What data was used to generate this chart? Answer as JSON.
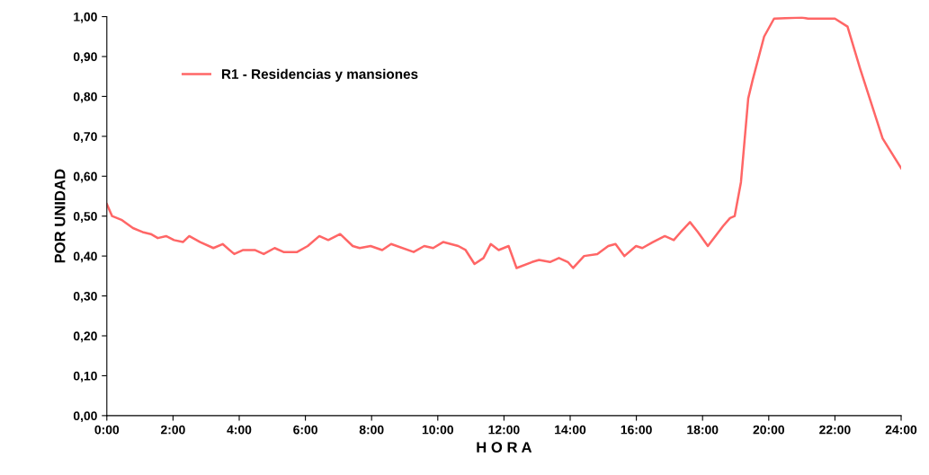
{
  "chart_data": {
    "type": "line",
    "xlabel": "H O R A",
    "ylabel": "POR UNIDAD",
    "xlim": [
      0,
      24
    ],
    "ylim": [
      0,
      1
    ],
    "grid": false,
    "legend": "top left",
    "marker": "none",
    "line_style": "solid",
    "xticks": [
      {
        "value": 0,
        "label": "0:00"
      },
      {
        "value": 2,
        "label": "2:00"
      },
      {
        "value": 4,
        "label": "4:00"
      },
      {
        "value": 6,
        "label": "6:00"
      },
      {
        "value": 8,
        "label": "8:00"
      },
      {
        "value": 10,
        "label": "10:00"
      },
      {
        "value": 12,
        "label": "12:00"
      },
      {
        "value": 14,
        "label": "14:00"
      },
      {
        "value": 16,
        "label": "16:00"
      },
      {
        "value": 18,
        "label": "18:00"
      },
      {
        "value": 20,
        "label": "20:00"
      },
      {
        "value": 22,
        "label": "22:00"
      },
      {
        "value": 24,
        "label": "24:00"
      }
    ],
    "yticks": [
      {
        "value": 0,
        "label": "0,00"
      },
      {
        "value": 0.1,
        "label": "0,10"
      },
      {
        "value": 0.2,
        "label": "0,20"
      },
      {
        "value": 0.3,
        "label": "0,30"
      },
      {
        "value": 0.4,
        "label": "0,40"
      },
      {
        "value": 0.5,
        "label": "0,50"
      },
      {
        "value": 0.6,
        "label": "0,60"
      },
      {
        "value": 0.7,
        "label": "0,70"
      },
      {
        "value": 0.8,
        "label": "0,80"
      },
      {
        "value": 0.9,
        "label": "0,90"
      },
      {
        "value": 1,
        "label": "1,00"
      }
    ],
    "series": [
      {
        "name": "R1 - Residencias y mansiones",
        "color": "#ff6666",
        "x": [
          0,
          0.16,
          0.46,
          0.79,
          1.08,
          1.33,
          1.54,
          1.79,
          2.03,
          2.3,
          2.49,
          2.82,
          3.22,
          3.5,
          3.85,
          4.12,
          4.47,
          4.74,
          5.07,
          5.34,
          5.75,
          6.07,
          6.42,
          6.69,
          7.05,
          7.43,
          7.64,
          7.97,
          8.32,
          8.59,
          9.27,
          9.59,
          9.86,
          10.16,
          10.62,
          10.84,
          11.11,
          11.38,
          11.6,
          11.84,
          12.14,
          12.38,
          12.85,
          13.06,
          13.39,
          13.66,
          13.93,
          14.09,
          14.42,
          14.82,
          15.15,
          15.37,
          15.64,
          15.99,
          16.18,
          16.5,
          16.86,
          17.13,
          17.34,
          17.62,
          17.86,
          18.16,
          18.62,
          18.83,
          18.97,
          19.16,
          19.38,
          19.51,
          19.86,
          20.16,
          21.0,
          21.19,
          22.0,
          22.38,
          22.76,
          23.44,
          24
        ],
        "values": [
          0.53,
          0.5,
          0.49,
          0.47,
          0.46,
          0.455,
          0.445,
          0.45,
          0.44,
          0.435,
          0.45,
          0.435,
          0.42,
          0.43,
          0.405,
          0.415,
          0.415,
          0.405,
          0.42,
          0.41,
          0.41,
          0.425,
          0.45,
          0.44,
          0.455,
          0.425,
          0.42,
          0.425,
          0.415,
          0.43,
          0.41,
          0.425,
          0.42,
          0.435,
          0.425,
          0.415,
          0.38,
          0.395,
          0.43,
          0.415,
          0.425,
          0.37,
          0.385,
          0.39,
          0.385,
          0.395,
          0.385,
          0.37,
          0.4,
          0.405,
          0.425,
          0.43,
          0.4,
          0.425,
          0.42,
          0.435,
          0.45,
          0.44,
          0.46,
          0.485,
          0.46,
          0.425,
          0.475,
          0.495,
          0.5,
          0.585,
          0.795,
          0.84,
          0.95,
          0.995,
          0.998,
          0.995,
          0.995,
          0.975,
          0.87,
          0.695,
          0.62
        ]
      }
    ]
  }
}
